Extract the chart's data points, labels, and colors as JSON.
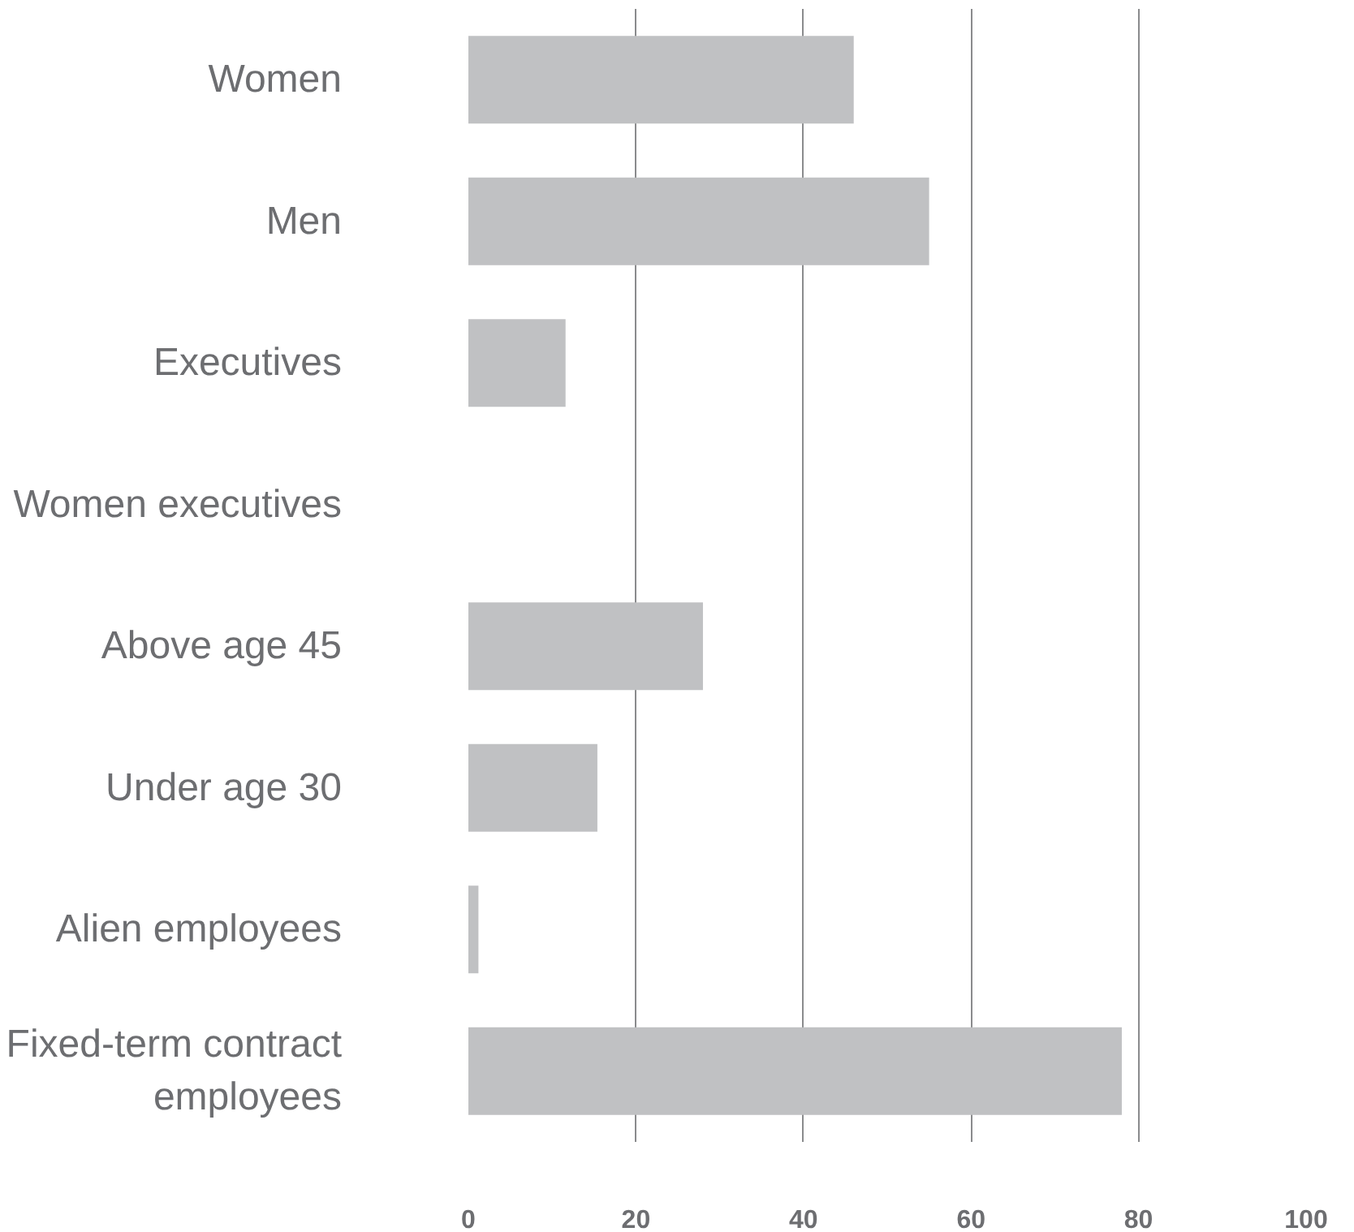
{
  "chart_data": {
    "type": "bar",
    "orientation": "horizontal",
    "categories": [
      "Women",
      "Men",
      "Executives",
      "Women executives",
      "Above age 45",
      "Under age 30",
      "Alien employees",
      "Fixed-term contract\nemployees"
    ],
    "values": [
      46,
      55,
      11.6,
      0,
      28,
      15.4,
      1.2,
      78
    ],
    "color": "#c0c1c3",
    "xlim": [
      0,
      100
    ],
    "xticks": [
      0,
      20,
      40,
      60,
      80,
      100
    ],
    "grid": "x"
  }
}
